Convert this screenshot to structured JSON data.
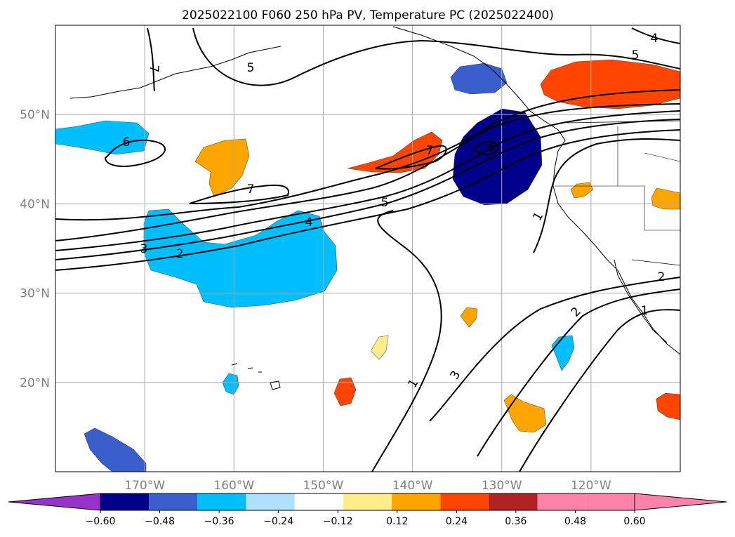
{
  "chart_data": {
    "type": "heatmap",
    "title": "2025022100 F060 250 hPa PV, Temperature PC (2025022400)",
    "lon_labels": [
      "170°W",
      "160°W",
      "150°W",
      "140°W",
      "130°W",
      "120°W"
    ],
    "lon_values": [
      -170,
      -160,
      -150,
      -140,
      -130,
      -120
    ],
    "lat_labels": [
      "50°N",
      "40°N",
      "30°N",
      "20°N"
    ],
    "lat_values": [
      50,
      40,
      30,
      20
    ],
    "xlim": [
      -180,
      -110
    ],
    "ylim": [
      10,
      60
    ],
    "grid": true,
    "colorbar": {
      "levels": [
        -0.72,
        -0.6,
        -0.48,
        -0.36,
        -0.24,
        -0.12,
        0.12,
        0.24,
        0.36,
        0.48,
        0.6,
        0.72
      ],
      "tick_labels": [
        "−0.60",
        "−0.48",
        "−0.36",
        "−0.24",
        "−0.12",
        "0.12",
        "0.24",
        "0.36",
        "0.48",
        "0.60"
      ],
      "colors": [
        "#9932cc",
        "#00008b",
        "#3a5fcd",
        "#00bfff",
        "#b0e2ff",
        "#ffffff",
        "#ffec8b",
        "#ffa500",
        "#ff4500",
        "#b22222",
        "#ff82ab"
      ],
      "extend": "both"
    },
    "shaded_regions": [
      {
        "lon": -176,
        "lat": 47.5,
        "value": -0.3
      },
      {
        "lon": -156,
        "lat": 33,
        "value": -0.42
      },
      {
        "lon": -166,
        "lat": 35,
        "value": -0.3
      },
      {
        "lon": -130.5,
        "lat": 45,
        "value": -0.54
      },
      {
        "lon": -131,
        "lat": 54,
        "value": -0.4
      },
      {
        "lon": -177,
        "lat": 12,
        "value": -0.4
      },
      {
        "lon": -160,
        "lat": 44,
        "value": 0.3
      },
      {
        "lon": -140,
        "lat": 45,
        "value": 0.4
      },
      {
        "lon": -121,
        "lat": 54.5,
        "value": 0.45
      },
      {
        "lon": -143.5,
        "lat": 24,
        "value": 0.2
      },
      {
        "lon": -148,
        "lat": 19,
        "value": 0.4
      },
      {
        "lon": -135.5,
        "lat": 28,
        "value": 0.3
      },
      {
        "lon": -128,
        "lat": 17,
        "value": 0.3
      },
      {
        "lon": -111.5,
        "lat": 17,
        "value": 0.4
      },
      {
        "lon": -121,
        "lat": 41.5,
        "value": 0.3
      },
      {
        "lon": -111.5,
        "lat": 40.5,
        "value": 0.3
      },
      {
        "lon": -123.5,
        "lat": 23,
        "value": -0.3
      },
      {
        "lon": -162,
        "lat": 20,
        "value": -0.3
      }
    ],
    "contour_labels": [
      "7",
      "5",
      "6",
      "7",
      "7",
      "6",
      "5",
      "4",
      "3",
      "2",
      "5",
      "4",
      "1",
      "1",
      "2",
      "3",
      "2",
      "1"
    ],
    "contour_levels": [
      1,
      2,
      3,
      4,
      5,
      6,
      7
    ]
  }
}
